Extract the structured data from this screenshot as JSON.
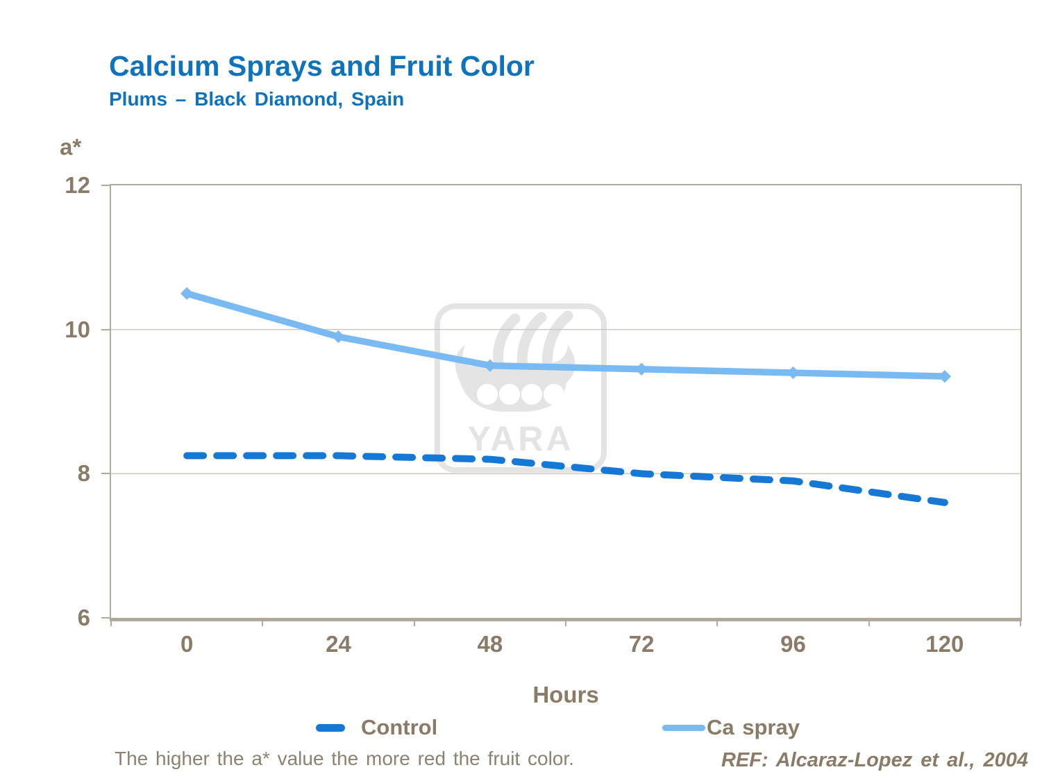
{
  "title": "Calcium Sprays and Fruit Color",
  "subtitle": "Plums – Black Diamond, Spain",
  "note": "The higher the a* value the more red the fruit color.",
  "reference": "REF: Alcaraz-Lopez et al., 2004",
  "watermark": {
    "text": "YARA"
  },
  "axes": {
    "ylabel": "a*",
    "xlabel": "Hours",
    "yticks": [
      12,
      10,
      8,
      6
    ],
    "xticks": [
      "0",
      "24",
      "48",
      "72",
      "96",
      "120"
    ]
  },
  "colors": {
    "title": "#0e72bc",
    "axis_text": "#8a7b67",
    "note_text": "#8d8172",
    "axis_border": "#b2a89c",
    "gridline": "#cdc6ba",
    "control_line": "#1478d4",
    "ca_spray_line": "#79baf2",
    "watermark": "#e4e4e4"
  },
  "chart_data": {
    "type": "line",
    "title": "Calcium Sprays and Fruit Color",
    "subtitle": "Plums – Black Diamond, Spain",
    "xlabel": "Hours",
    "ylabel": "a*",
    "x": [
      0,
      24,
      48,
      72,
      96,
      120
    ],
    "categories": [
      "0",
      "24",
      "48",
      "72",
      "96",
      "120"
    ],
    "ylim": [
      6,
      12
    ],
    "yticks": [
      12,
      10,
      8,
      6
    ],
    "grid_values": [
      10,
      8
    ],
    "legend_position": "bottom",
    "series": [
      {
        "name": "Control",
        "values": [
          8.25,
          8.25,
          8.2,
          8.0,
          7.9,
          7.6
        ],
        "color": "#1478d4",
        "style": "dashed",
        "width": 10
      },
      {
        "name": "Ca spray",
        "values": [
          10.5,
          9.9,
          9.5,
          9.45,
          9.4,
          9.35
        ],
        "color": "#79baf2",
        "style": "solid",
        "marker": "diamond",
        "width": 9.5
      }
    ]
  }
}
